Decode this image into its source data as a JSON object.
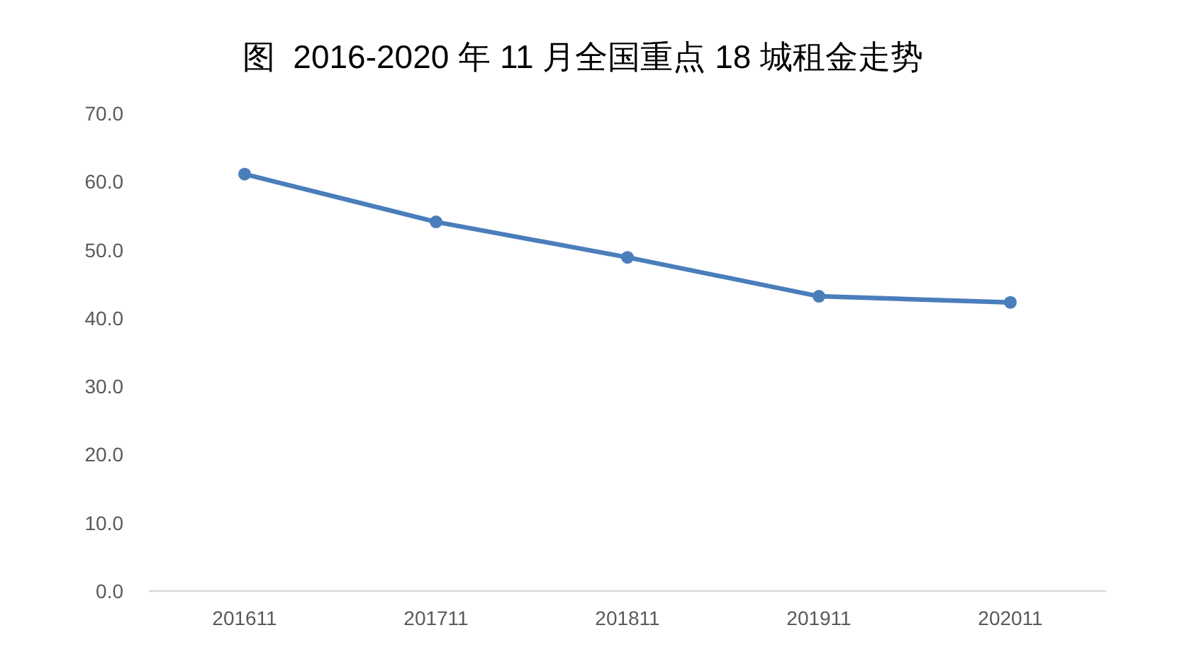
{
  "chart_data": {
    "type": "line",
    "title": "图  2016-2020 年 11 月全国重点 18 城租金走势",
    "categories": [
      "201611",
      "201711",
      "201811",
      "201911",
      "202011"
    ],
    "series": [
      {
        "color": "#4a7ebb",
        "values": [
          61.1,
          54.1,
          48.9,
          43.2,
          42.3
        ]
      }
    ],
    "ylim": [
      0,
      70
    ],
    "yticks": [
      {
        "value": 0,
        "label": "0.0"
      },
      {
        "value": 10,
        "label": "10.0"
      },
      {
        "value": 20,
        "label": "20.0"
      },
      {
        "value": 30,
        "label": "30.0"
      },
      {
        "value": 40,
        "label": "40.0"
      },
      {
        "value": 50,
        "label": "50.0"
      },
      {
        "value": 60,
        "label": "60.0"
      },
      {
        "value": 70,
        "label": "70.0"
      }
    ],
    "marker": "circle",
    "line_style": "solid"
  }
}
